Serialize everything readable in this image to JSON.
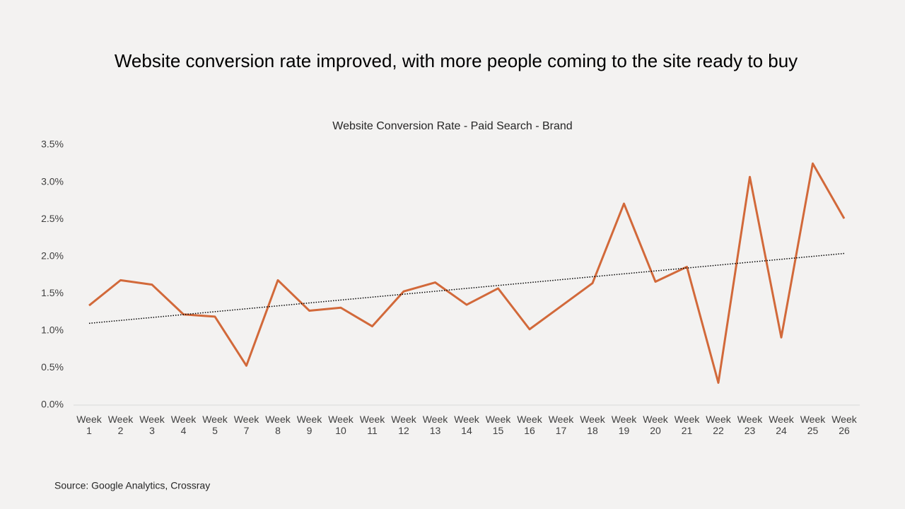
{
  "chart_data": {
    "type": "line",
    "title": "Website conversion rate improved, with more people coming to the site ready to buy",
    "subtitle": "Website Conversion Rate - Paid Search - Brand",
    "source": "Source: Google Analytics, Crossray",
    "categories": [
      "Week 1",
      "Week 2",
      "Week 3",
      "Week 4",
      "Week 5",
      "Week 7",
      "Week 8",
      "Week 9",
      "Week 10",
      "Week 11",
      "Week 12",
      "Week 13",
      "Week 14",
      "Week 15",
      "Week 16",
      "Week 17",
      "Week 18",
      "Week 19",
      "Week 20",
      "Week 21",
      "Week 22",
      "Week 23",
      "Week 24",
      "Week 25",
      "Week 26"
    ],
    "series": [
      {
        "color": "#d2693a",
        "values": [
          1.34,
          1.68,
          1.62,
          1.22,
          1.19,
          0.53,
          1.68,
          1.27,
          1.31,
          1.06,
          1.53,
          1.65,
          1.35,
          1.57,
          1.02,
          1.33,
          1.64,
          2.71,
          1.66,
          1.86,
          0.3,
          3.07,
          0.91,
          3.25,
          2.51
        ]
      }
    ],
    "trendline": {
      "color": "#000000",
      "values": [
        1.1,
        2.04
      ]
    },
    "ylim": [
      0,
      3.5
    ],
    "yticks": [
      {
        "value": 0,
        "label": "0.0%"
      },
      {
        "value": 0.5,
        "label": "0.5%"
      },
      {
        "value": 1,
        "label": "1.0%"
      },
      {
        "value": 1.5,
        "label": "1.5%"
      },
      {
        "value": 2,
        "label": "2.0%"
      },
      {
        "value": 2.5,
        "label": "2.5%"
      },
      {
        "value": 3,
        "label": "3.0%"
      },
      {
        "value": 3.5,
        "label": "3.5%"
      }
    ],
    "grid": false
  }
}
